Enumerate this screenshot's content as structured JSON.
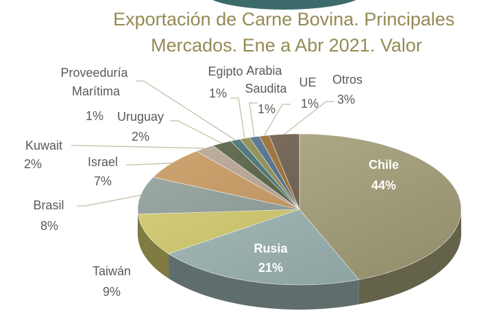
{
  "chart_data": {
    "type": "pie",
    "title": "Exportación de Carne Bovina. Principales Mercados. Ene a Abr 2021. Valor",
    "categories": [
      "Chile",
      "Rusia",
      "Taiwán",
      "Brasil",
      "Israel",
      "Kuwait",
      "Uruguay",
      "Proveeduría Marítima",
      "Egipto",
      "Arabia Saudita",
      "UE",
      "Otros"
    ],
    "values": [
      44,
      21,
      9,
      8,
      7,
      2,
      2,
      1,
      1,
      1,
      1,
      3
    ],
    "value_labels": [
      "44%",
      "21%",
      "9%",
      "8%",
      "7%",
      "2%",
      "2%",
      "1%",
      "1%",
      "1%",
      "1%",
      "3%"
    ],
    "colors": [
      "#a9a37b",
      "#9fb8b6",
      "#d6cd6b",
      "#8f9f99",
      "#c9985c",
      "#b8a494",
      "#525d3c",
      "#3f6f70",
      "#8e8c4c",
      "#4b6b8a",
      "#9b6b2c",
      "#6b5b48"
    ]
  }
}
